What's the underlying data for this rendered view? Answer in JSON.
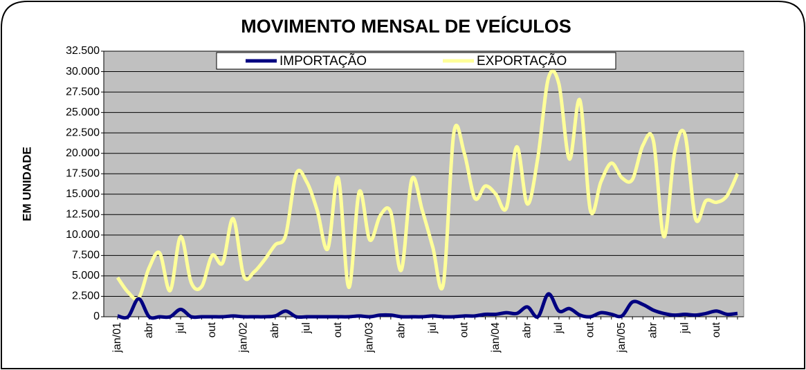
{
  "chart_data": {
    "type": "line",
    "title": "MOVIMENTO MENSAL DE VEÍCULOS",
    "y_label": "EM UNIDADE",
    "categories": [
      "jan/01",
      null,
      null,
      "abr",
      null,
      null,
      "jul",
      null,
      null,
      "out",
      null,
      null,
      "jan/02",
      null,
      null,
      "abr",
      null,
      null,
      "jul",
      null,
      null,
      "out",
      null,
      null,
      "jan/03",
      null,
      null,
      "abr",
      null,
      null,
      "jul",
      null,
      null,
      "out",
      null,
      null,
      "jan/04",
      null,
      null,
      "abr",
      null,
      null,
      "jul",
      null,
      null,
      "out",
      null,
      null,
      "jan/05",
      null,
      null,
      "abr",
      null,
      null,
      "jul",
      null,
      null,
      "out",
      null,
      null
    ],
    "series": [
      {
        "name": "IMPORTAÇÃO",
        "color": "#000080",
        "values": [
          100,
          0,
          2200,
          0,
          0,
          0,
          900,
          0,
          0,
          0,
          0,
          100,
          0,
          0,
          0,
          100,
          700,
          0,
          0,
          0,
          0,
          0,
          0,
          100,
          0,
          200,
          200,
          0,
          0,
          0,
          100,
          0,
          0,
          100,
          100,
          300,
          300,
          500,
          400,
          1200,
          0,
          2800,
          700,
          1000,
          200,
          0,
          500,
          300,
          100,
          1800,
          1500,
          800,
          400,
          200,
          300,
          200,
          400,
          700,
          300,
          400
        ]
      },
      {
        "name": "EXPORTAÇÃO",
        "color": "#ffff99",
        "values": [
          4800,
          3000,
          2300,
          6000,
          7800,
          3200,
          9800,
          4200,
          3700,
          7500,
          6600,
          12000,
          5000,
          5500,
          7000,
          8800,
          10000,
          17500,
          16500,
          13000,
          8300,
          17000,
          3600,
          15300,
          9400,
          12400,
          12800,
          5700,
          16800,
          13000,
          8500,
          4000,
          22500,
          20000,
          14500,
          16000,
          15000,
          13300,
          20800,
          13800,
          19500,
          29200,
          28500,
          19300,
          26500,
          13000,
          16500,
          18800,
          17000,
          16800,
          21000,
          21500,
          9800,
          20000,
          22300,
          12000,
          14200,
          14000,
          14800,
          17500
        ]
      }
    ],
    "ylim": [
      0,
      32500
    ],
    "yticks": [
      0,
      {
        "value": 2500,
        "label": "2.500"
      },
      {
        "value": 5000,
        "label": "5.000"
      },
      {
        "value": 7500,
        "label": "7.500"
      },
      {
        "value": 10000,
        "label": "10.000"
      },
      {
        "value": 12500,
        "label": "12.500"
      },
      {
        "value": 15000,
        "label": "15.000"
      },
      {
        "value": 17500,
        "label": "17.500"
      },
      {
        "value": 20000,
        "label": "20.000"
      },
      {
        "value": 22500,
        "label": "22.500"
      },
      {
        "value": 25000,
        "label": "25.000"
      },
      {
        "value": 27500,
        "label": "27.500"
      },
      {
        "value": 30000,
        "label": "30.000"
      },
      {
        "value": 32500,
        "label": "32.500"
      }
    ],
    "grid": true,
    "legend": "top"
  }
}
